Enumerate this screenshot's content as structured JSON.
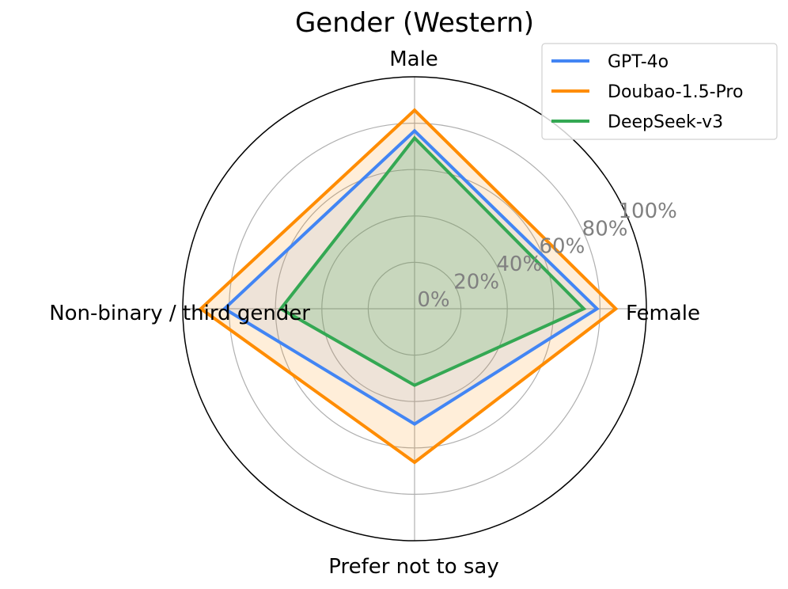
{
  "chart_data": {
    "type": "radar",
    "title": "Gender (Western)",
    "categories": [
      "Female",
      "Male",
      "Non-binary / third gender",
      "Prefer not to say"
    ],
    "radial_ticks": [
      "0%",
      "20%",
      "40%",
      "60%",
      "80%",
      "100%"
    ],
    "rlim": [
      0,
      100
    ],
    "grid": true,
    "legend_placement": "top-right",
    "series": [
      {
        "name": "GPT-4o",
        "color": "#4285F4",
        "values": [
          78.7,
          76.7,
          82,
          49.7
        ]
      },
      {
        "name": "Doubao-1.5-Pro",
        "color": "#FF8C00",
        "values": [
          86.8,
          85.6,
          92.2,
          66.2
        ]
      },
      {
        "name": "DeepSeek-v3",
        "color": "#34A853",
        "values": [
          73,
          73.6,
          57.7,
          33
        ]
      }
    ]
  }
}
